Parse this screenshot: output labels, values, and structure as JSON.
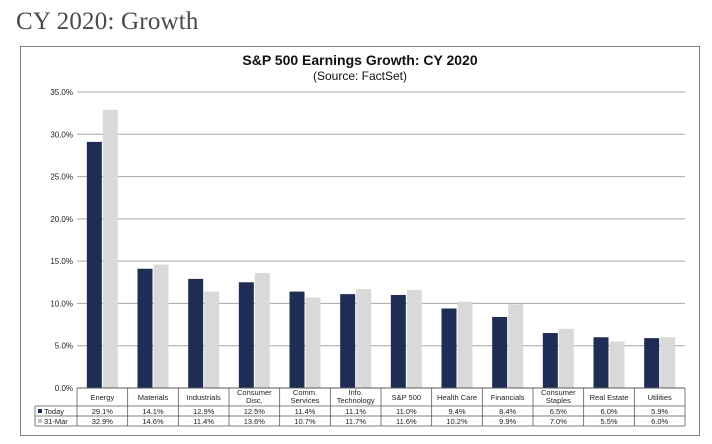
{
  "page": {
    "heading": "CY 2020: Growth"
  },
  "chart_data": {
    "type": "bar",
    "title": "S&P 500 Earnings Growth: CY 2020",
    "subtitle": "(Source: FactSet)",
    "categories": [
      [
        "Energy"
      ],
      [
        "Materials"
      ],
      [
        "Industrials"
      ],
      [
        "Consumer",
        "Disc."
      ],
      [
        "Comm.",
        "Services"
      ],
      [
        "Info.",
        "Technology"
      ],
      [
        "S&P 500"
      ],
      [
        "Health Care"
      ],
      [
        "Financials"
      ],
      [
        "Consumer",
        "Staples"
      ],
      [
        "Real Estate"
      ],
      [
        "Utilities"
      ]
    ],
    "series": [
      {
        "name": "Today",
        "color": "#1f2d55",
        "values": [
          29.1,
          14.1,
          12.9,
          12.5,
          11.4,
          11.1,
          11.0,
          9.4,
          8.4,
          6.5,
          6.0,
          5.9
        ],
        "labels": [
          "29.1%",
          "14.1%",
          "12.9%",
          "12.5%",
          "11.4%",
          "11.1%",
          "11.0%",
          "9.4%",
          "8.4%",
          "6.5%",
          "6.0%",
          "5.9%"
        ]
      },
      {
        "name": "31-Mar",
        "color": "#d9d9d9",
        "values": [
          32.9,
          14.6,
          11.4,
          13.6,
          10.7,
          11.7,
          11.6,
          10.2,
          9.9,
          7.0,
          5.5,
          6.0
        ],
        "labels": [
          "32.9%",
          "14.6%",
          "11.4%",
          "13.6%",
          "10.7%",
          "11.7%",
          "11.6%",
          "10.2%",
          "9.9%",
          "7.0%",
          "5.5%",
          "6.0%"
        ]
      }
    ],
    "y_ticks": [
      "0.0%",
      "5.0%",
      "10.0%",
      "15.0%",
      "20.0%",
      "25.0%",
      "30.0%",
      "35.0%"
    ],
    "ylim": [
      0,
      35
    ],
    "grid": true,
    "legend": "data-table-below"
  }
}
